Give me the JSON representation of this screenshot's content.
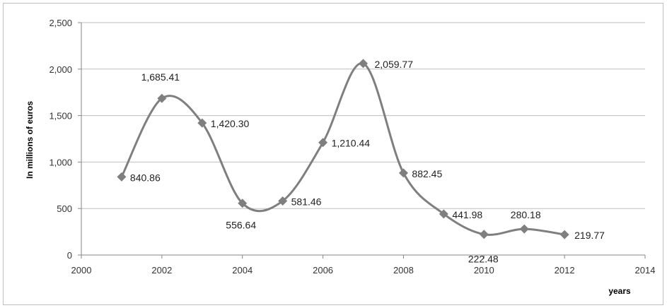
{
  "chart_data": {
    "type": "line",
    "title": "",
    "xlabel": "years",
    "ylabel": "In millions of euros",
    "xlim": [
      2000,
      2014
    ],
    "ylim": [
      0,
      2500
    ],
    "x_ticks": [
      "2000",
      "2002",
      "2004",
      "2006",
      "2008",
      "2010",
      "2012",
      "2014"
    ],
    "y_ticks": [
      "0",
      "500",
      "1,000",
      "1,500",
      "2,000",
      "2,500"
    ],
    "grid": "horizontal",
    "smooth": true,
    "line_color": "#7f7f7f",
    "marker": "diamond",
    "series": [
      {
        "x": [
          2001,
          2002,
          2003,
          2004,
          2005,
          2006,
          2007,
          2008,
          2009,
          2010,
          2011,
          2012
        ],
        "values": [
          840.86,
          1685.41,
          1420.3,
          556.64,
          581.46,
          1210.44,
          2059.77,
          882.45,
          441.98,
          222.48,
          280.18,
          219.77
        ],
        "labels": [
          "840.86",
          "1,685.41",
          "1,420.30",
          "556.64",
          "581.46",
          "1,210.44",
          "2,059.77",
          "882.45",
          "441.98",
          "222.48",
          "280.18",
          "219.77"
        ]
      }
    ]
  }
}
